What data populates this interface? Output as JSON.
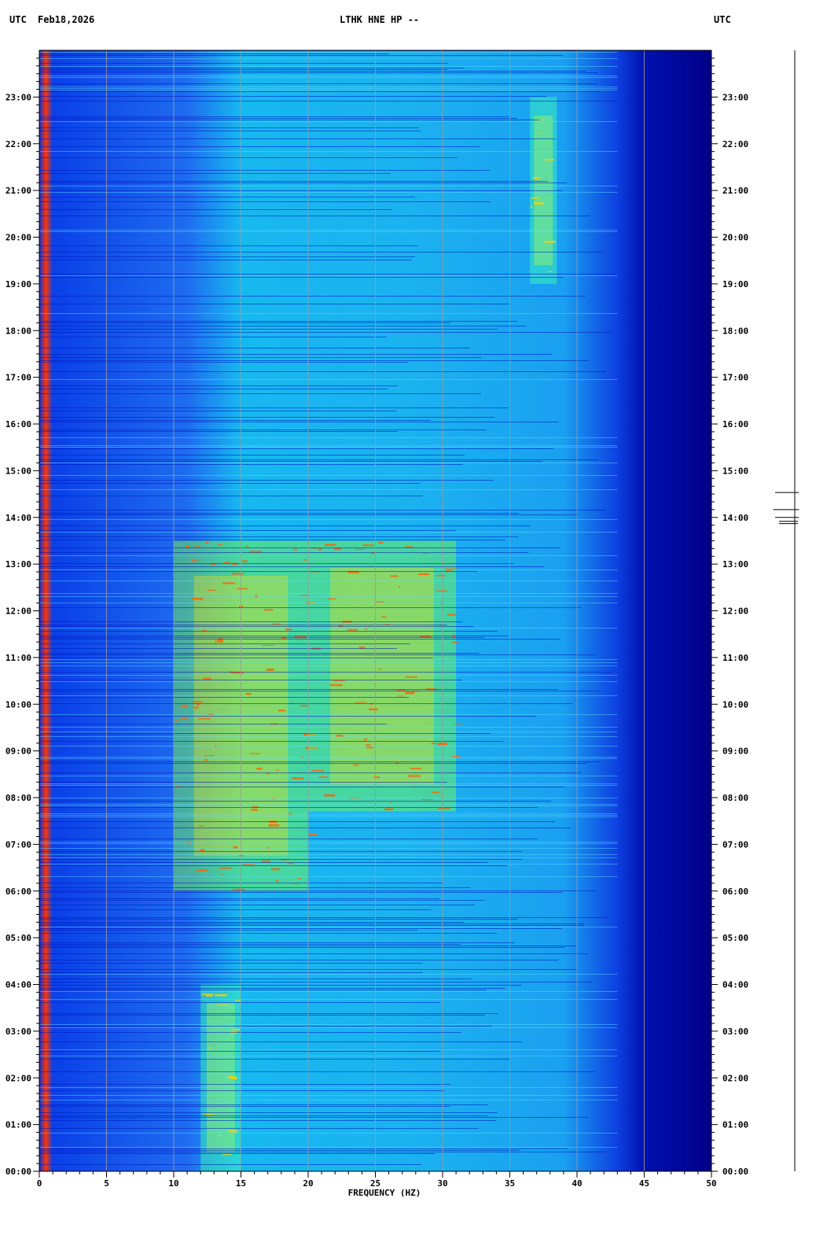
{
  "header": {
    "left_timezone": "UTC",
    "date": "Feb18,2026",
    "station": "LTHK HNE HP --",
    "right_timezone": "UTC"
  },
  "chart_data": {
    "type": "heatmap",
    "xlabel": "FREQUENCY (HZ)",
    "ylabel": "",
    "xlim": [
      0,
      50
    ],
    "x_ticks": [
      0,
      5,
      10,
      15,
      20,
      25,
      30,
      35,
      40,
      45,
      50
    ],
    "y_ticks": [
      "00:00",
      "01:00",
      "02:00",
      "03:00",
      "04:00",
      "05:00",
      "06:00",
      "07:00",
      "08:00",
      "09:00",
      "10:00",
      "11:00",
      "12:00",
      "13:00",
      "14:00",
      "15:00",
      "16:00",
      "17:00",
      "18:00",
      "19:00",
      "20:00",
      "21:00",
      "22:00",
      "23:00"
    ],
    "ylim_hours": [
      0,
      24
    ],
    "colormap": [
      "#00008b",
      "#0000ff",
      "#00bfff",
      "#00ffff",
      "#7fff7f",
      "#ffff00",
      "#ff7f00",
      "#ff0000"
    ],
    "energy_bands": [
      {
        "f_start": 10,
        "f_end": 20,
        "t_start": 6,
        "t_end": 13.5,
        "level": "high"
      },
      {
        "f_start": 20,
        "f_end": 31,
        "t_start": 7.7,
        "t_end": 13.5,
        "level": "high"
      },
      {
        "f_start": 36.5,
        "f_end": 38.5,
        "t_start": 19,
        "t_end": 23,
        "level": "medium"
      },
      {
        "f_start": 12,
        "f_end": 15,
        "t_start": 0,
        "t_end": 4,
        "level": "medium"
      }
    ],
    "rolloff_frequency": 43,
    "trace_events": [
      {
        "time": "14:32",
        "amplitude": 0.5
      },
      {
        "time": "14:10",
        "amplitude": 0.55
      },
      {
        "time": "14:00",
        "amplitude": 0.5
      },
      {
        "time": "13:55",
        "amplitude": 0.4
      },
      {
        "time": "13:52",
        "amplitude": 0.4
      }
    ]
  }
}
